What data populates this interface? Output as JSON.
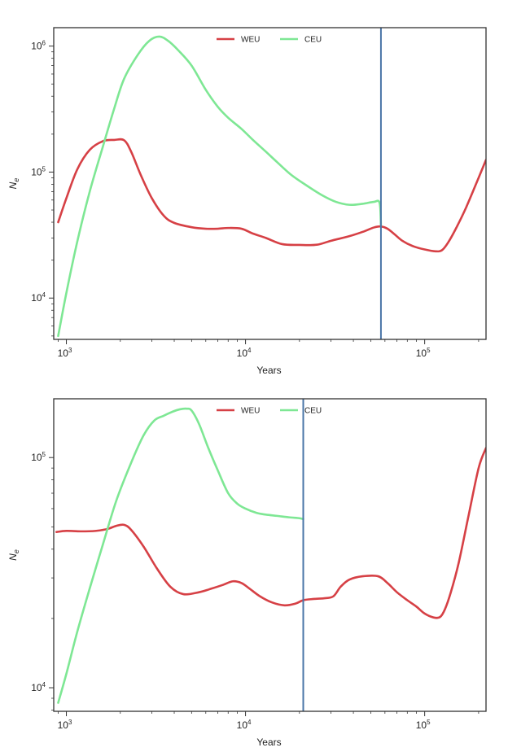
{
  "chart_data": [
    {
      "type": "line",
      "title": "",
      "xlabel": "Years",
      "ylabel": {
        "base": "N",
        "sub": "e"
      },
      "xscale": "log",
      "yscale": "log",
      "xlim": [
        850,
        220000
      ],
      "ylim": [
        4700,
        1400000
      ],
      "grid": false,
      "legend_placement": "top-center",
      "x_ticks": [
        {
          "value": 1000,
          "base": "10",
          "exp": "3"
        },
        {
          "value": 10000,
          "base": "10",
          "exp": "4"
        },
        {
          "value": 100000,
          "base": "10",
          "exp": "5"
        }
      ],
      "y_ticks": [
        {
          "value": 10000,
          "base": "10",
          "exp": "4"
        },
        {
          "value": 100000,
          "base": "10",
          "exp": "5"
        },
        {
          "value": 1000000,
          "base": "10",
          "exp": "6"
        }
      ],
      "vline": {
        "x": 57000,
        "color": "#4a76a8"
      },
      "series": [
        {
          "name": "WEU",
          "color": "#d64045",
          "x": [
            900,
            1000,
            1150,
            1350,
            1600,
            1850,
            2100,
            2300,
            2600,
            3000,
            3500,
            4000,
            5000,
            6000,
            7000,
            8000,
            9500,
            11000,
            13000,
            16000,
            20000,
            25000,
            30000,
            38000,
            45000,
            52000,
            57000,
            62000,
            68000,
            75000,
            85000,
            100000,
            115000,
            125000,
            135000,
            150000,
            170000,
            200000,
            220000
          ],
          "y": [
            40000,
            62000,
            105000,
            150000,
            176000,
            180000,
            179000,
            145000,
            95000,
            62000,
            45000,
            39500,
            36500,
            35500,
            35500,
            36000,
            35500,
            32500,
            30000,
            26800,
            26400,
            26500,
            28500,
            31000,
            33500,
            36300,
            37000,
            35500,
            32000,
            28500,
            26000,
            24300,
            23500,
            24000,
            27500,
            36000,
            52000,
            90000,
            125000
          ]
        },
        {
          "name": "CEU",
          "color": "#7ee794",
          "x": [
            900,
            1000,
            1150,
            1350,
            1600,
            1850,
            2100,
            2500,
            2900,
            3300,
            3700,
            4200,
            5000,
            6000,
            7000,
            8000,
            9500,
            11000,
            13000,
            15000,
            18000,
            22000,
            27000,
            32000,
            38000,
            45000,
            52000,
            56000,
            57000
          ],
          "y": [
            5000,
            11000,
            28000,
            70000,
            160000,
            320000,
            550000,
            850000,
            1100000,
            1190000,
            1100000,
            930000,
            700000,
            450000,
            330000,
            270000,
            220000,
            180000,
            145000,
            120000,
            95000,
            78000,
            65000,
            58000,
            55000,
            56000,
            58000,
            57000,
            38000
          ]
        }
      ]
    },
    {
      "type": "line",
      "title": "",
      "xlabel": "Years",
      "ylabel": {
        "base": "N",
        "sub": "e"
      },
      "xscale": "log",
      "yscale": "log",
      "xlim": [
        850,
        220000
      ],
      "ylim": [
        7900,
        180000
      ],
      "grid": false,
      "legend_placement": "top-center",
      "x_ticks": [
        {
          "value": 1000,
          "base": "10",
          "exp": "3"
        },
        {
          "value": 10000,
          "base": "10",
          "exp": "4"
        },
        {
          "value": 100000,
          "base": "10",
          "exp": "5"
        }
      ],
      "y_ticks": [
        {
          "value": 10000,
          "base": "10",
          "exp": "4"
        },
        {
          "value": 100000,
          "base": "10",
          "exp": "5"
        }
      ],
      "vline": {
        "x": 21000,
        "color": "#4a76a8"
      },
      "series": [
        {
          "name": "WEU",
          "color": "#d64045",
          "x": [
            880,
            1000,
            1200,
            1450,
            1700,
            1900,
            2100,
            2300,
            2700,
            3200,
            3800,
            4500,
            5500,
            6500,
            7500,
            8500,
            9500,
            10500,
            12000,
            14000,
            16500,
            19000,
            21000,
            24000,
            28000,
            31000,
            34000,
            38000,
            45000,
            55000,
            62000,
            70000,
            80000,
            90000,
            100000,
            112000,
            122000,
            130000,
            140000,
            155000,
            175000,
            200000,
            220000
          ],
          "y": [
            47500,
            48000,
            47800,
            48000,
            49000,
            50500,
            51000,
            48500,
            41000,
            33000,
            27500,
            25500,
            26000,
            27000,
            28000,
            29000,
            28500,
            27000,
            25000,
            23500,
            22800,
            23200,
            24000,
            24300,
            24500,
            25000,
            27500,
            29500,
            30500,
            30500,
            28500,
            26000,
            24000,
            22500,
            21000,
            20200,
            20300,
            22000,
            26000,
            35000,
            55000,
            90000,
            110000
          ]
        },
        {
          "name": "CEU",
          "color": "#7ee794",
          "x": [
            900,
            1000,
            1150,
            1350,
            1600,
            1900,
            2300,
            2700,
            3100,
            3500,
            3900,
            4300,
            4700,
            5000,
            5500,
            6200,
            7000,
            8000,
            9000,
            10000,
            11500,
            13000,
            15000,
            17500,
            20000,
            21000
          ],
          "y": [
            8600,
            11500,
            17500,
            27000,
            42000,
            65000,
            95000,
            125000,
            145000,
            152000,
            158000,
            162000,
            163000,
            160000,
            140000,
            110000,
            88000,
            70000,
            63000,
            60000,
            57500,
            56500,
            55800,
            55000,
            54500,
            54000
          ]
        }
      ]
    }
  ]
}
